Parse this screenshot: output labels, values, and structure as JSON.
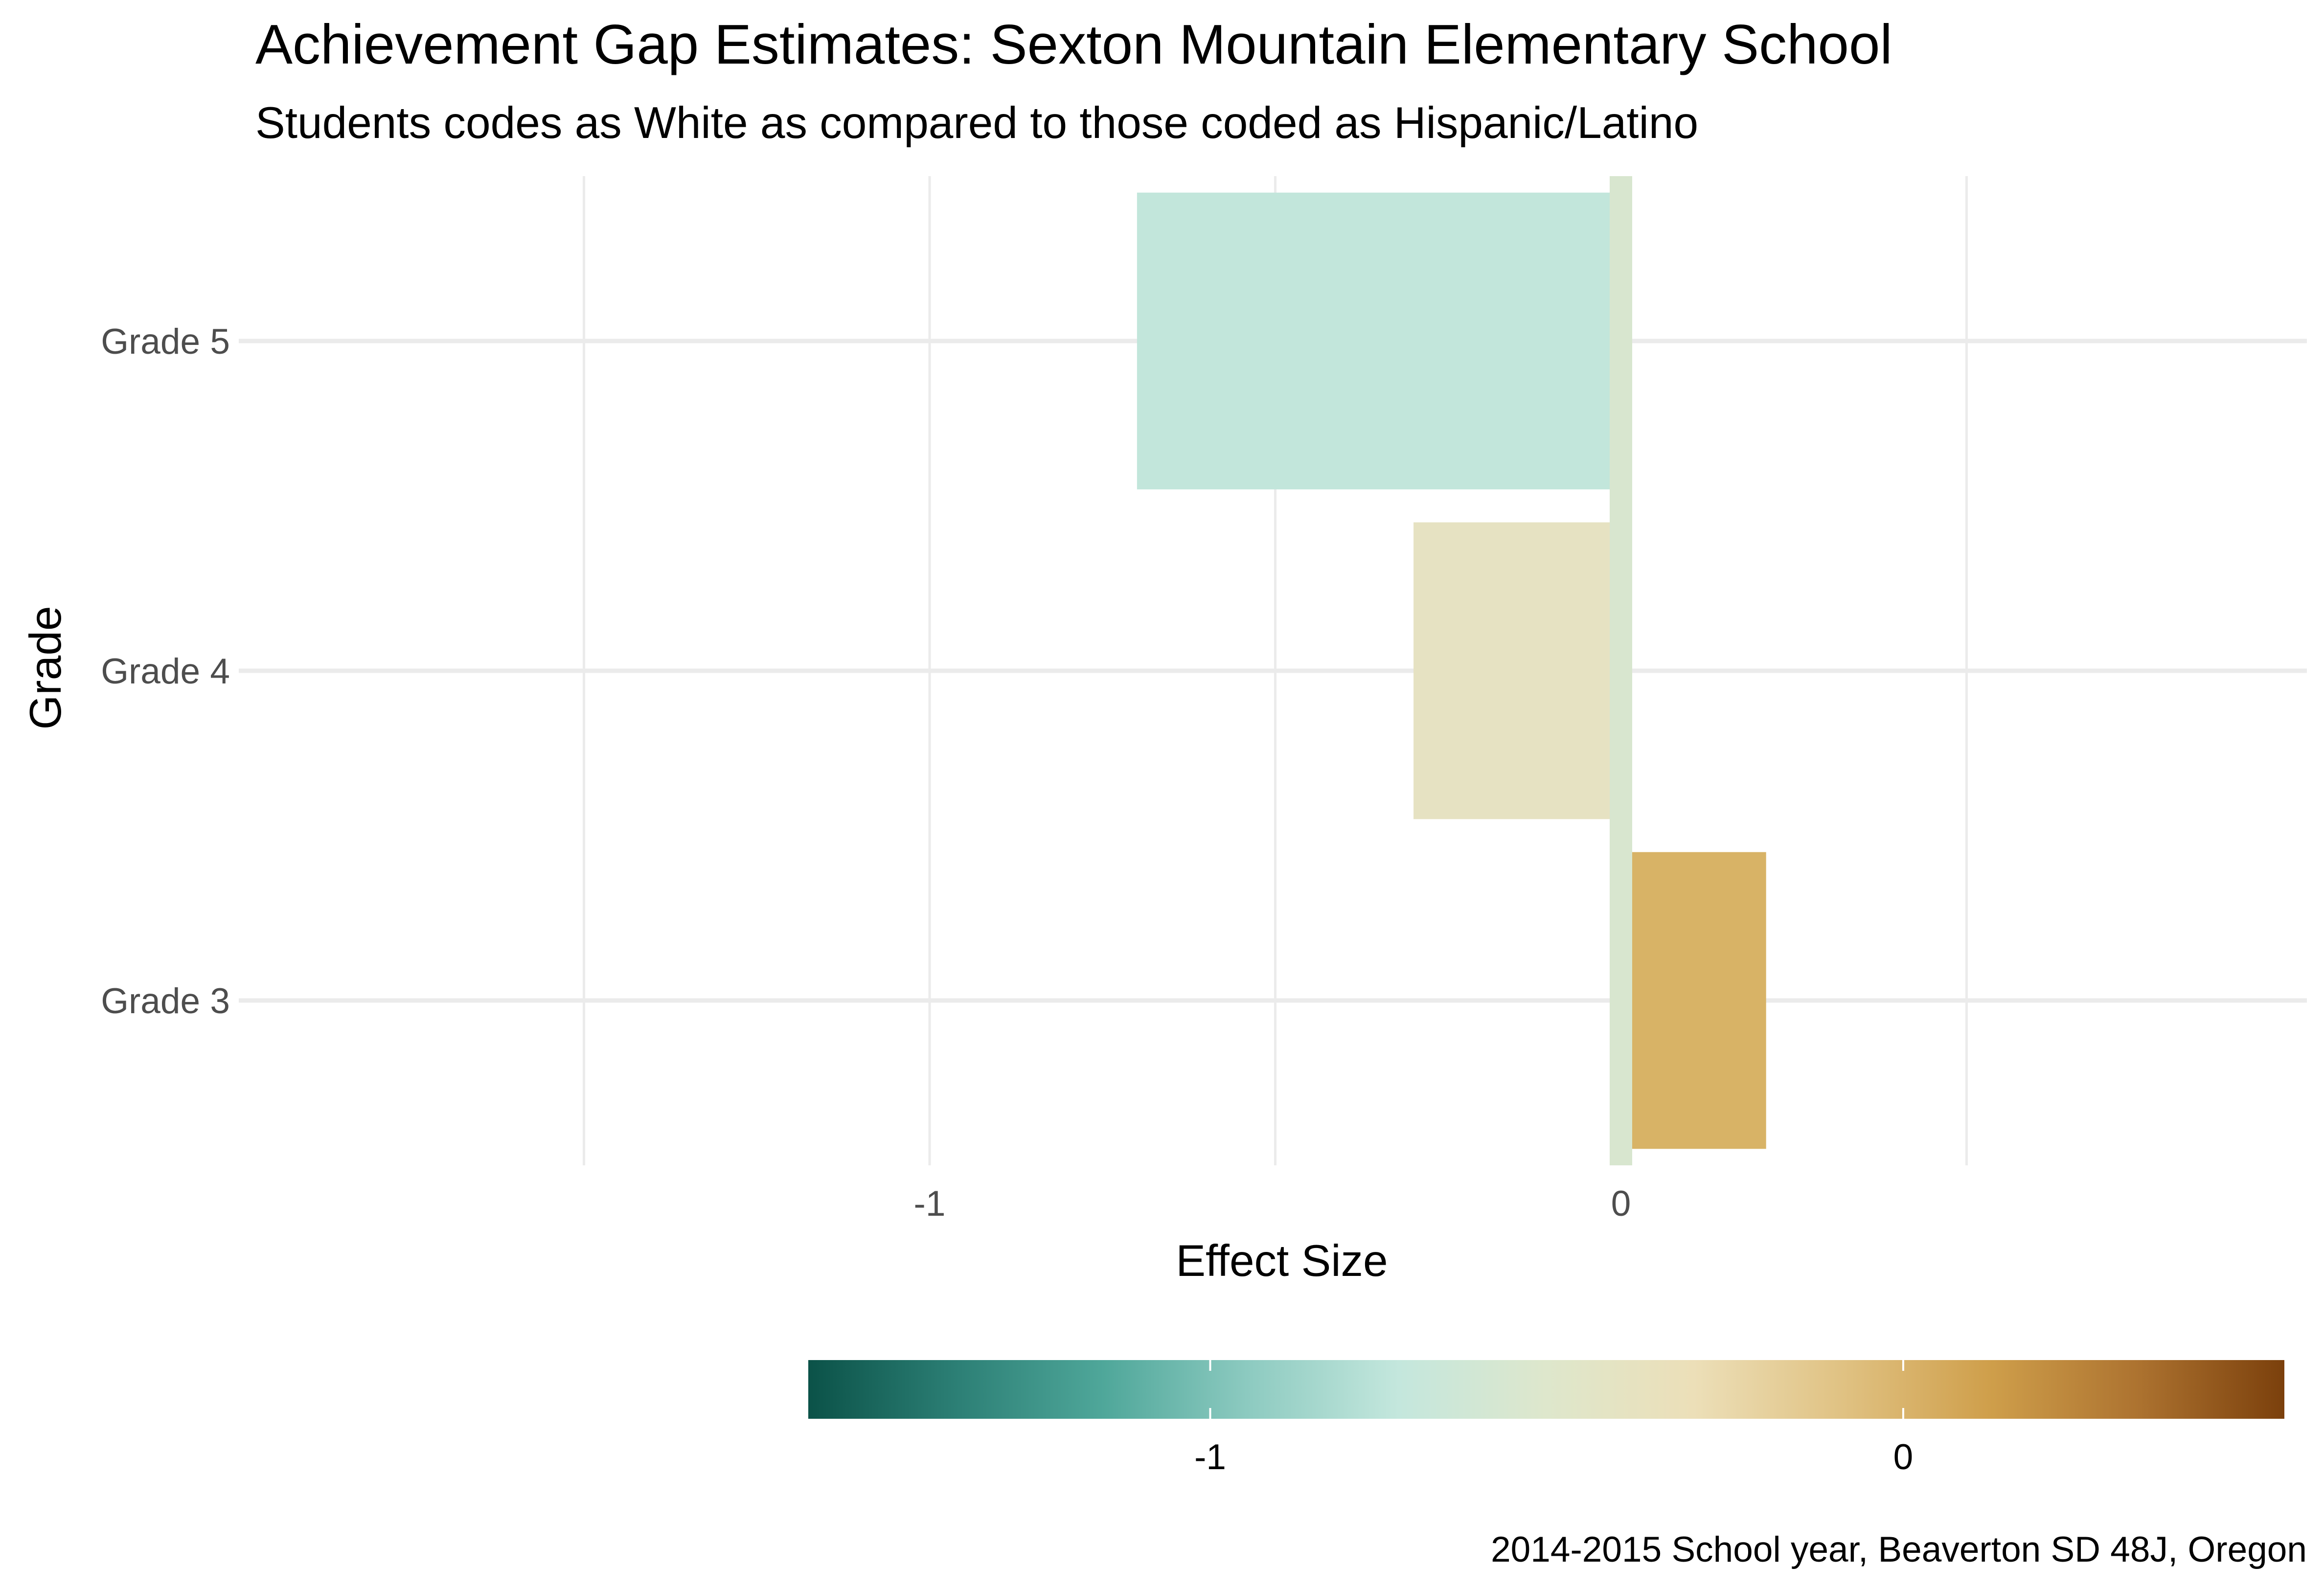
{
  "chart_data": {
    "type": "bar",
    "orientation": "horizontal",
    "title": "Achievement Gap Estimates: Sexton Mountain Elementary School",
    "subtitle": "Students codes as White as compared to those coded as Hispanic/Latino",
    "xlabel": "Effect Size",
    "ylabel": "Grade",
    "categories": [
      "Grade 3",
      "Grade 4",
      "Grade 5"
    ],
    "values": [
      0.21,
      -0.3,
      -0.7
    ],
    "bar_colors": [
      "#d8b366",
      "#e6e2c2",
      "#c2e6db"
    ],
    "reference_line": {
      "x": 0,
      "color": "#d8e6cf"
    },
    "xlim": [
      -1.5,
      1.0
    ],
    "xticks": [
      -1,
      0
    ],
    "xtick_labels": [
      "-1",
      "0"
    ],
    "grid": true,
    "legend": {
      "type": "colorbar",
      "position": "bottom",
      "range": [
        -1.58,
        0.55
      ],
      "ticks": [
        -1,
        0
      ],
      "tick_labels": [
        "-1",
        "0"
      ],
      "colors": [
        "#0b5248",
        "#2c7f75",
        "#4fa79a",
        "#8ecbc1",
        "#c4e7dd",
        "#dee7cc",
        "#ecdfb8",
        "#e0c283",
        "#cf9f4b",
        "#ad7330",
        "#7b400c"
      ]
    },
    "caption": "2014-2015 School year, Beaverton SD 48J, Oregon"
  }
}
